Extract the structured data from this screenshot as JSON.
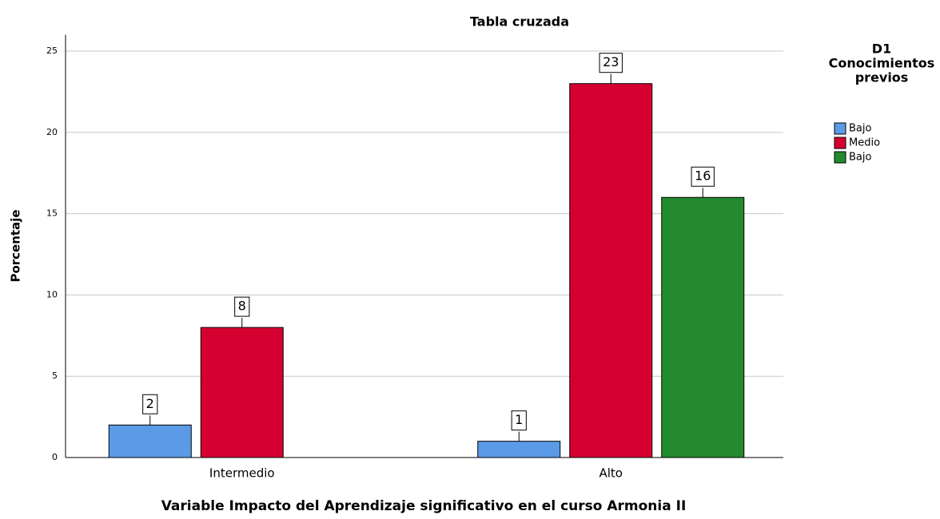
{
  "chart_data": {
    "type": "bar",
    "title": "Tabla cruzada",
    "x_label": "Variable Impacto del Aprendizaje significativo en el curso Armonia II",
    "y_label": "Porcentaje",
    "legend_title": [
      "D1",
      "Conocimientos",
      "previos"
    ],
    "categories": [
      "Intermedio",
      "Alto"
    ],
    "series": [
      {
        "name": "Bajo",
        "color": "#5b9ae6",
        "values": [
          2,
          1
        ]
      },
      {
        "name": "Medio",
        "color": "#d5002f",
        "values": [
          8,
          23
        ]
      },
      {
        "name": "Bajo",
        "color": "#238a2d",
        "values": [
          null,
          16
        ]
      }
    ],
    "ylim": [
      0,
      26
    ],
    "yticks": [
      0,
      5,
      10,
      15,
      20,
      25
    ],
    "grid": true,
    "legend": "right"
  }
}
